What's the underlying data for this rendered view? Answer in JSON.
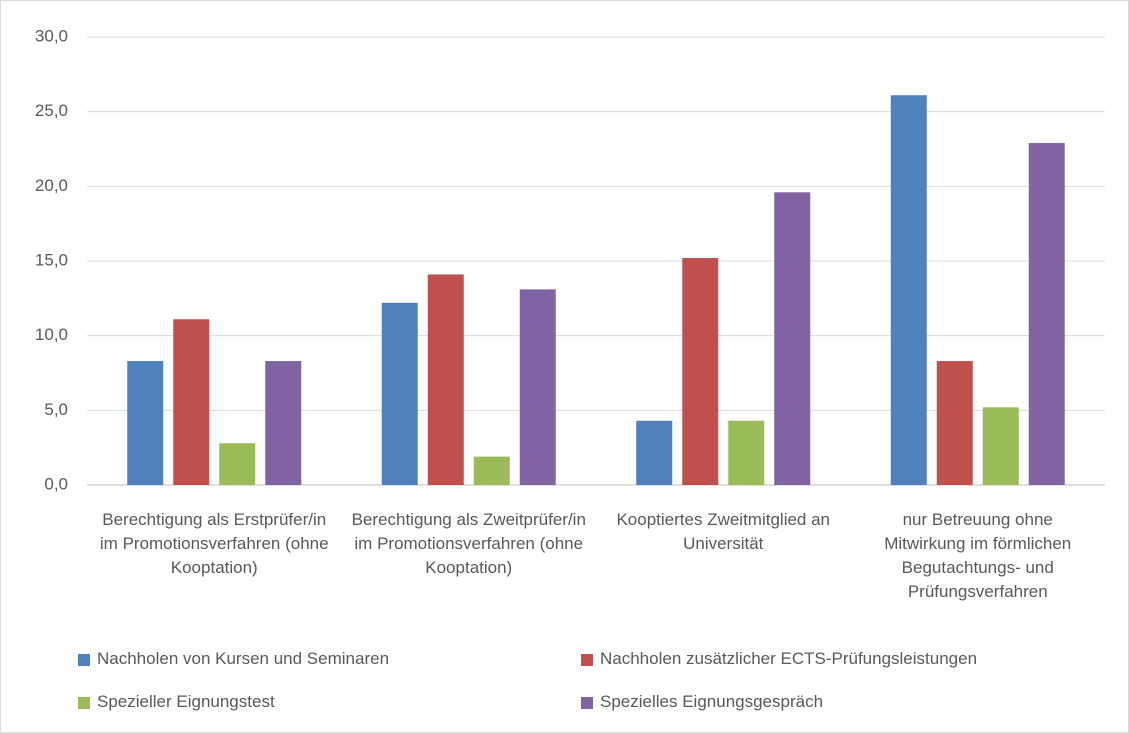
{
  "chart_data": {
    "type": "bar",
    "categories": [
      "Berechtigung als Erstprüfer/in im Promotionsverfahren (ohne Kooptation)",
      "Berechtigung als Zweitprüfer/in im Promotionsverfahren (ohne Kooptation)",
      "Kooptiertes Zweitmitglied an Universität",
      "nur Betreuung ohne Mitwirkung im förmlichen Begutachtungs- und Prüfungsverfahren"
    ],
    "series": [
      {
        "name": "Nachholen von Kursen und Seminaren",
        "color": "#4f81bd",
        "values": [
          8.3,
          12.2,
          4.3,
          26.1
        ]
      },
      {
        "name": "Nachholen zusätzlicher ECTS-Prüfungsleistungen",
        "color": "#c0504d",
        "values": [
          11.1,
          14.1,
          15.2,
          8.3
        ]
      },
      {
        "name": "Spezieller Eignungstest",
        "color": "#9bbb59",
        "values": [
          2.8,
          1.9,
          4.3,
          5.2
        ]
      },
      {
        "name": "Spezielles Eignungsgespräch",
        "color": "#8064a2",
        "values": [
          8.3,
          13.1,
          19.6,
          22.9
        ]
      }
    ],
    "ylim": [
      0,
      30
    ],
    "yticks": [
      {
        "value": 0,
        "label": "0,0"
      },
      {
        "value": 5,
        "label": "5,0"
      },
      {
        "value": 10,
        "label": "10,0"
      },
      {
        "value": 15,
        "label": "15,0"
      },
      {
        "value": 20,
        "label": "20,0"
      },
      {
        "value": 25,
        "label": "25,0"
      },
      {
        "value": 30,
        "label": "30,0"
      }
    ],
    "grid": true,
    "legend": "bottom"
  }
}
